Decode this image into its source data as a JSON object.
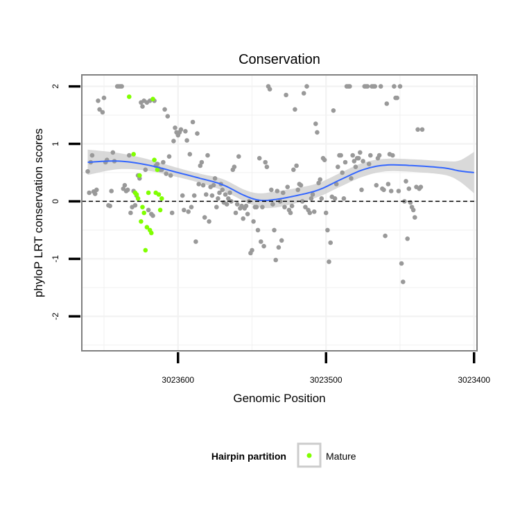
{
  "chart_data": {
    "type": "scatter",
    "title": "Conservation",
    "xlabel": "Genomic Position",
    "ylabel": "phyloP LRT conservation scores",
    "x_reversed": true,
    "xlim": [
      3023665,
      3023398
    ],
    "ylim": [
      -2.6,
      2.2
    ],
    "x_ticks": [
      3023600,
      3023500,
      3023400
    ],
    "x_tick_labels": [
      "3023600",
      "3023500",
      "3023400"
    ],
    "y_ticks": [
      -2,
      -1,
      0,
      1,
      2
    ],
    "y_tick_labels": [
      "-2",
      "-1",
      "0",
      "1",
      "2"
    ],
    "grid": true,
    "reference_line": {
      "y": 0,
      "style": "dashed",
      "color": "#000000"
    },
    "colors": {
      "other": "#999999",
      "mature": "#80ff00",
      "smooth": "#3366ff",
      "band": "#cccccc"
    },
    "legend": {
      "title": "Hairpin partition",
      "position": "bottom",
      "entries": [
        {
          "label": "Mature",
          "color": "#80ff00"
        }
      ]
    },
    "series": [
      {
        "name": "",
        "color": "#999999",
        "points": [
          [
            3023661,
            0.52
          ],
          [
            3023660,
            0.15
          ],
          [
            3023659,
            0.68
          ],
          [
            3023658,
            0.8
          ],
          [
            3023657,
            0.17
          ],
          [
            3023656,
            0.13
          ],
          [
            3023655,
            0.2
          ],
          [
            3023654,
            1.75
          ],
          [
            3023653,
            1.6
          ],
          [
            3023651,
            1.55
          ],
          [
            3023650,
            1.8
          ],
          [
            3023649,
            0.68
          ],
          [
            3023648,
            0.72
          ],
          [
            3023647,
            -0.07
          ],
          [
            3023646,
            -0.08
          ],
          [
            3023645,
            0.18
          ],
          [
            3023644,
            0.85
          ],
          [
            3023643,
            0.7
          ],
          [
            3023641,
            2.0
          ],
          [
            3023640,
            2.0
          ],
          [
            3023639,
            2.0
          ],
          [
            3023638,
            2.0
          ],
          [
            3023637,
            0.22
          ],
          [
            3023636,
            0.28
          ],
          [
            3023635,
            0.18
          ],
          [
            3023634,
            0.2
          ],
          [
            3023633,
            0.8
          ],
          [
            3023632,
            -0.2
          ],
          [
            3023631,
            -0.1
          ],
          [
            3023630,
            0.18
          ],
          [
            3023629,
            -0.07
          ],
          [
            3023628,
            0.1
          ],
          [
            3023627,
            0.45
          ],
          [
            3023626,
            0.4
          ],
          [
            3023625,
            1.72
          ],
          [
            3023624,
            1.65
          ],
          [
            3023623,
            1.75
          ],
          [
            3023622,
            0.55
          ],
          [
            3023621,
            1.72
          ],
          [
            3023620,
            -0.15
          ],
          [
            3023619,
            1.75
          ],
          [
            3023618,
            -0.22
          ],
          [
            3023617,
            -0.25
          ],
          [
            3023616,
            1.75
          ],
          [
            3023615,
            0.62
          ],
          [
            3023614,
            0.65
          ],
          [
            3023613,
            0.57
          ],
          [
            3023612,
            0.55
          ],
          [
            3023611,
            0.55
          ],
          [
            3023610,
            0.68
          ],
          [
            3023609,
            1.6
          ],
          [
            3023608,
            0.48
          ],
          [
            3023607,
            1.48
          ],
          [
            3023606,
            0.78
          ],
          [
            3023605,
            0.45
          ],
          [
            3023604,
            -0.2
          ],
          [
            3023603,
            1.05
          ],
          [
            3023602,
            1.28
          ],
          [
            3023601,
            1.2
          ],
          [
            3023600,
            1.15
          ],
          [
            3023599,
            1.2
          ],
          [
            3023598,
            1.25
          ],
          [
            3023597,
            0.1
          ],
          [
            3023596,
            -0.15
          ],
          [
            3023595,
            1.22
          ],
          [
            3023594,
            1.06
          ],
          [
            3023593,
            -0.18
          ],
          [
            3023592,
            0.82
          ],
          [
            3023591,
            -0.1
          ],
          [
            3023590,
            1.38
          ],
          [
            3023589,
            0.1
          ],
          [
            3023588,
            -0.7
          ],
          [
            3023587,
            1.18
          ],
          [
            3023586,
            0.3
          ],
          [
            3023585,
            0.62
          ],
          [
            3023584,
            0.68
          ],
          [
            3023583,
            0.28
          ],
          [
            3023582,
            -0.28
          ],
          [
            3023581,
            0.12
          ],
          [
            3023580,
            0.8
          ],
          [
            3023579,
            -0.35
          ],
          [
            3023578,
            0.25
          ],
          [
            3023577,
            0.1
          ],
          [
            3023576,
            0.28
          ],
          [
            3023575,
            0.4
          ],
          [
            3023574,
            -0.1
          ],
          [
            3023573,
            0.05
          ],
          [
            3023572,
            0.15
          ],
          [
            3023571,
            0.3
          ],
          [
            3023570,
            0.2
          ],
          [
            3023569,
            -0.02
          ],
          [
            3023568,
            0.12
          ],
          [
            3023567,
            -0.05
          ],
          [
            3023566,
            0.05
          ],
          [
            3023565,
            0.15
          ],
          [
            3023564,
            0.0
          ],
          [
            3023563,
            0.55
          ],
          [
            3023562,
            0.6
          ],
          [
            3023561,
            -0.2
          ],
          [
            3023560,
            -0.05
          ],
          [
            3023559,
            0.78
          ],
          [
            3023558,
            -0.12
          ],
          [
            3023557,
            -0.08
          ],
          [
            3023556,
            -0.3
          ],
          [
            3023555,
            -0.12
          ],
          [
            3023554,
            -0.08
          ],
          [
            3023553,
            -0.22
          ],
          [
            3023552,
            0.0
          ],
          [
            3023551,
            -0.9
          ],
          [
            3023550,
            -0.85
          ],
          [
            3023549,
            -0.35
          ],
          [
            3023548,
            -0.1
          ],
          [
            3023547,
            -0.1
          ],
          [
            3023546,
            -0.5
          ],
          [
            3023545,
            0.75
          ],
          [
            3023544,
            -0.7
          ],
          [
            3023543,
            -0.1
          ],
          [
            3023542,
            -0.78
          ],
          [
            3023541,
            0.68
          ],
          [
            3023540,
            0.6
          ],
          [
            3023539,
            2.0
          ],
          [
            3023538,
            1.95
          ],
          [
            3023537,
            0.2
          ],
          [
            3023536,
            -0.05
          ],
          [
            3023535,
            -0.5
          ],
          [
            3023534,
            -1.02
          ],
          [
            3023533,
            0.18
          ],
          [
            3023532,
            -0.8
          ],
          [
            3023531,
            0.0
          ],
          [
            3023530,
            -0.68
          ],
          [
            3023529,
            0.15
          ],
          [
            3023528,
            -0.1
          ],
          [
            3023527,
            1.85
          ],
          [
            3023526,
            0.25
          ],
          [
            3023525,
            -0.15
          ],
          [
            3023524,
            -0.2
          ],
          [
            3023523,
            -0.08
          ],
          [
            3023522,
            0.55
          ],
          [
            3023521,
            1.6
          ],
          [
            3023520,
            0.62
          ],
          [
            3023519,
            0.2
          ],
          [
            3023518,
            0.3
          ],
          [
            3023517,
            0.28
          ],
          [
            3023516,
            0.0
          ],
          [
            3023515,
            1.88
          ],
          [
            3023514,
            -0.1
          ],
          [
            3023513,
            2.0
          ],
          [
            3023512,
            -0.15
          ],
          [
            3023511,
            -0.2
          ],
          [
            3023510,
            0.05
          ],
          [
            3023509,
            0.12
          ],
          [
            3023508,
            -0.18
          ],
          [
            3023507,
            1.35
          ],
          [
            3023506,
            1.2
          ],
          [
            3023505,
            0.32
          ],
          [
            3023504,
            0.38
          ],
          [
            3023503,
            0.05
          ],
          [
            3023502,
            0.75
          ],
          [
            3023501,
            0.72
          ],
          [
            3023500,
            -0.2
          ],
          [
            3023499,
            -0.5
          ],
          [
            3023498,
            -1.05
          ],
          [
            3023497,
            -0.72
          ],
          [
            3023496,
            0.08
          ],
          [
            3023495,
            1.58
          ],
          [
            3023494,
            0.05
          ],
          [
            3023493,
            0.3
          ],
          [
            3023492,
            0.6
          ],
          [
            3023491,
            0.8
          ],
          [
            3023490,
            0.8
          ],
          [
            3023489,
            0.5
          ],
          [
            3023488,
            0.05
          ],
          [
            3023487,
            0.68
          ],
          [
            3023486,
            2.0
          ],
          [
            3023485,
            2.0
          ],
          [
            3023484,
            2.0
          ],
          [
            3023483,
            0.4
          ],
          [
            3023482,
            0.8
          ],
          [
            3023481,
            0.7
          ],
          [
            3023480,
            0.6
          ],
          [
            3023479,
            0.75
          ],
          [
            3023478,
            0.75
          ],
          [
            3023477,
            0.85
          ],
          [
            3023476,
            0.2
          ],
          [
            3023475,
            0.7
          ],
          [
            3023474,
            2.0
          ],
          [
            3023473,
            2.0
          ],
          [
            3023472,
            2.0
          ],
          [
            3023471,
            0.65
          ],
          [
            3023470,
            0.8
          ],
          [
            3023469,
            2.0
          ],
          [
            3023468,
            2.0
          ],
          [
            3023467,
            2.0
          ],
          [
            3023466,
            0.28
          ],
          [
            3023465,
            0.75
          ],
          [
            3023464,
            0.8
          ],
          [
            3023463,
            2.0
          ],
          [
            3023462,
            0.22
          ],
          [
            3023461,
            0.2
          ],
          [
            3023460,
            -0.6
          ],
          [
            3023459,
            1.7
          ],
          [
            3023458,
            0.3
          ],
          [
            3023457,
            0.82
          ],
          [
            3023456,
            0.18
          ],
          [
            3023455,
            0.8
          ],
          [
            3023454,
            2.0
          ],
          [
            3023453,
            1.8
          ],
          [
            3023452,
            1.8
          ],
          [
            3023451,
            0.18
          ],
          [
            3023450,
            2.0
          ],
          [
            3023449,
            -1.08
          ],
          [
            3023448,
            -1.4
          ],
          [
            3023447,
            0.0
          ],
          [
            3023446,
            0.35
          ],
          [
            3023445,
            -0.65
          ],
          [
            3023444,
            0.22
          ],
          [
            3023443,
            -0.02
          ],
          [
            3023442,
            -0.1
          ],
          [
            3023441,
            -0.15
          ],
          [
            3023440,
            -0.28
          ],
          [
            3023439,
            0.25
          ],
          [
            3023438,
            1.25
          ],
          [
            3023437,
            0.22
          ],
          [
            3023436,
            0.25
          ],
          [
            3023435,
            1.25
          ]
        ]
      },
      {
        "name": "Mature",
        "color": "#80ff00",
        "points": [
          [
            3023633,
            1.82
          ],
          [
            3023630,
            0.82
          ],
          [
            3023629,
            0.15
          ],
          [
            3023628,
            0.12
          ],
          [
            3023627,
            0.05
          ],
          [
            3023626,
            0.45
          ],
          [
            3023625,
            -0.35
          ],
          [
            3023624,
            -0.1
          ],
          [
            3023623,
            -0.2
          ],
          [
            3023622,
            -0.85
          ],
          [
            3023621,
            -0.45
          ],
          [
            3023620,
            0.15
          ],
          [
            3023619,
            -0.5
          ],
          [
            3023618,
            -0.55
          ],
          [
            3023617,
            1.78
          ],
          [
            3023616,
            0.72
          ],
          [
            3023615,
            0.15
          ],
          [
            3023614,
            0.55
          ],
          [
            3023613,
            0.12
          ],
          [
            3023612,
            -0.15
          ],
          [
            3023611,
            0.05
          ]
        ]
      }
    ],
    "smooth": {
      "x": [
        3023661,
        3023640,
        3023620,
        3023600,
        3023585,
        3023570,
        3023555,
        3023545,
        3023535,
        3023520,
        3023505,
        3023490,
        3023475,
        3023460,
        3023440,
        3023420,
        3023410,
        3023400
      ],
      "y": [
        0.68,
        0.7,
        0.63,
        0.5,
        0.4,
        0.29,
        0.1,
        0.02,
        0.03,
        0.1,
        0.2,
        0.38,
        0.55,
        0.63,
        0.62,
        0.58,
        0.53,
        0.5
      ],
      "se": [
        0.22,
        0.14,
        0.1,
        0.08,
        0.08,
        0.1,
        0.1,
        0.12,
        0.14,
        0.13,
        0.12,
        0.12,
        0.12,
        0.11,
        0.11,
        0.12,
        0.18,
        0.36
      ]
    }
  }
}
